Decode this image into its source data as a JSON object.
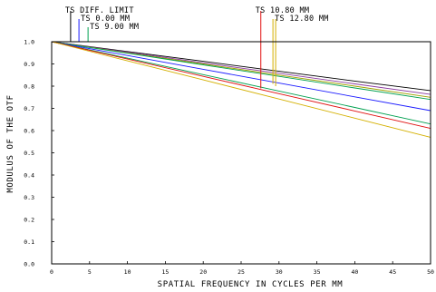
{
  "chart_data": {
    "type": "line",
    "xlabel": "SPATIAL FREQUENCY IN CYCLES PER MM",
    "ylabel": "MODULUS OF THE OTF",
    "xlim": [
      0,
      50
    ],
    "ylim": [
      0,
      1
    ],
    "x_ticks": [
      "0",
      "5",
      "10",
      "15",
      "20",
      "25",
      "30",
      "35",
      "40",
      "45",
      "50"
    ],
    "y_ticks": [
      "0.0",
      "0.1",
      "0.2",
      "0.3",
      "0.4",
      "0.5",
      "0.6",
      "0.7",
      "0.8",
      "0.9",
      "1.0"
    ],
    "grid": false,
    "legend": [
      {
        "label": "TS DIFF. LIMIT",
        "color": "#000000",
        "marker_x": 2.5
      },
      {
        "label": "TS 0.00 MM",
        "color": "#1a1aff",
        "marker_x": 3.6
      },
      {
        "label": "TS 9.00 MM",
        "color": "#00a050",
        "marker_x": 4.8
      },
      {
        "label": "TS 10.80 MM",
        "color": "#e01010",
        "marker_x": 27.6
      },
      {
        "label": "TS 12.80 MM",
        "color": "#d4b000",
        "marker_x": 29.2
      }
    ],
    "series": [
      {
        "color": "#000000",
        "x": [
          0,
          10,
          20,
          30,
          40,
          50
        ],
        "y": [
          1.0,
          0.956,
          0.912,
          0.867,
          0.823,
          0.78
        ]
      },
      {
        "color": "#8a3aa0",
        "x": [
          0,
          10,
          20,
          30,
          40,
          50
        ],
        "y": [
          1.0,
          0.953,
          0.905,
          0.858,
          0.81,
          0.763
        ]
      },
      {
        "color": "#a0a000",
        "x": [
          0,
          10,
          20,
          30,
          40,
          50
        ],
        "y": [
          1.0,
          0.95,
          0.9,
          0.85,
          0.8,
          0.75
        ]
      },
      {
        "color": "#00a050",
        "x": [
          0,
          10,
          20,
          30,
          40,
          50
        ],
        "y": [
          1.0,
          0.948,
          0.896,
          0.844,
          0.792,
          0.74
        ]
      },
      {
        "color": "#1a1aff",
        "x": [
          0,
          10,
          20,
          30,
          40,
          50
        ],
        "y": [
          1.0,
          0.938,
          0.876,
          0.814,
          0.752,
          0.69
        ]
      },
      {
        "color": "#00a050",
        "x": [
          0,
          10,
          20,
          30,
          40,
          50
        ],
        "y": [
          1.0,
          0.926,
          0.852,
          0.778,
          0.704,
          0.63
        ]
      },
      {
        "color": "#e01010",
        "x": [
          0,
          10,
          20,
          30,
          40,
          50
        ],
        "y": [
          1.0,
          0.922,
          0.844,
          0.766,
          0.688,
          0.61
        ]
      },
      {
        "color": "#d4b000",
        "x": [
          0,
          10,
          20,
          30,
          40,
          50
        ],
        "y": [
          1.0,
          0.914,
          0.828,
          0.742,
          0.656,
          0.57
        ]
      }
    ]
  }
}
